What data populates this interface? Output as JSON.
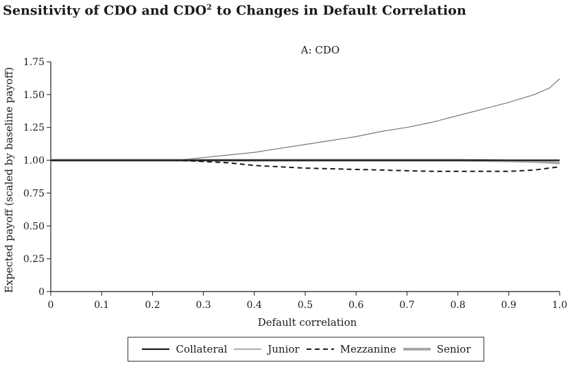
{
  "figure": {
    "title": "Sensitivity of CDO and CDO",
    "title_sup": "2",
    "title_rest": " to Changes in Default Correlation"
  },
  "chart_data": {
    "type": "line",
    "title": "A: CDO",
    "xlabel": "Default correlation",
    "ylabel": "Expected payoff (scaled by baseline payoff)",
    "xlim": [
      0,
      1.0
    ],
    "ylim": [
      0,
      1.75
    ],
    "xticks": [
      0,
      0.1,
      0.2,
      0.3,
      0.4,
      0.5,
      0.6,
      0.7,
      0.8,
      0.9,
      1.0
    ],
    "xtick_labels": [
      "0",
      "0.1",
      "0.2",
      "0.3",
      "0.4",
      "0.5",
      "0.6",
      "0.7",
      "0.8",
      "0.9",
      "1.0"
    ],
    "yticks": [
      0,
      0.25,
      0.5,
      0.75,
      1.0,
      1.25,
      1.5,
      1.75
    ],
    "ytick_labels": [
      "0",
      "0.25",
      "0.50",
      "0.75",
      "1.00",
      "1.25",
      "1.50",
      "1.75"
    ],
    "grid": false,
    "legend_position": "bottom",
    "series": [
      {
        "name": "Collateral",
        "color": "#1a1a1a",
        "style": "solid",
        "width": 2.2,
        "x": [
          0,
          0.1,
          0.2,
          0.3,
          0.4,
          0.5,
          0.6,
          0.7,
          0.8,
          0.9,
          1.0
        ],
        "y": [
          1.0,
          1.0,
          1.0,
          1.0,
          1.0,
          1.0,
          1.0,
          1.0,
          1.0,
          1.0,
          1.0
        ]
      },
      {
        "name": "Junior",
        "color": "#777777",
        "style": "solid",
        "width": 1.2,
        "x": [
          0,
          0.1,
          0.2,
          0.25,
          0.3,
          0.35,
          0.4,
          0.45,
          0.5,
          0.55,
          0.6,
          0.65,
          0.7,
          0.75,
          0.8,
          0.85,
          0.9,
          0.95,
          0.98,
          1.0
        ],
        "y": [
          1.0,
          1.0,
          1.0,
          1.0,
          1.02,
          1.04,
          1.06,
          1.09,
          1.12,
          1.15,
          1.18,
          1.22,
          1.25,
          1.29,
          1.34,
          1.39,
          1.44,
          1.5,
          1.55,
          1.62
        ]
      },
      {
        "name": "Mezzanine",
        "color": "#1a1a1a",
        "style": "dashed",
        "width": 2.0,
        "x": [
          0,
          0.1,
          0.2,
          0.25,
          0.3,
          0.35,
          0.4,
          0.45,
          0.5,
          0.55,
          0.6,
          0.65,
          0.7,
          0.75,
          0.8,
          0.85,
          0.9,
          0.95,
          1.0
        ],
        "y": [
          1.0,
          1.0,
          1.0,
          1.0,
          0.99,
          0.98,
          0.96,
          0.95,
          0.94,
          0.935,
          0.93,
          0.925,
          0.92,
          0.915,
          0.915,
          0.915,
          0.915,
          0.925,
          0.95
        ]
      },
      {
        "name": "Senior",
        "color": "#a8a8a8",
        "style": "solid",
        "width": 4.0,
        "x": [
          0,
          0.1,
          0.2,
          0.3,
          0.4,
          0.5,
          0.6,
          0.7,
          0.8,
          0.9,
          0.95,
          1.0
        ],
        "y": [
          1.0,
          1.0,
          1.0,
          1.0,
          1.0,
          1.0,
          1.0,
          1.0,
          1.0,
          0.995,
          0.99,
          0.98
        ]
      }
    ]
  }
}
